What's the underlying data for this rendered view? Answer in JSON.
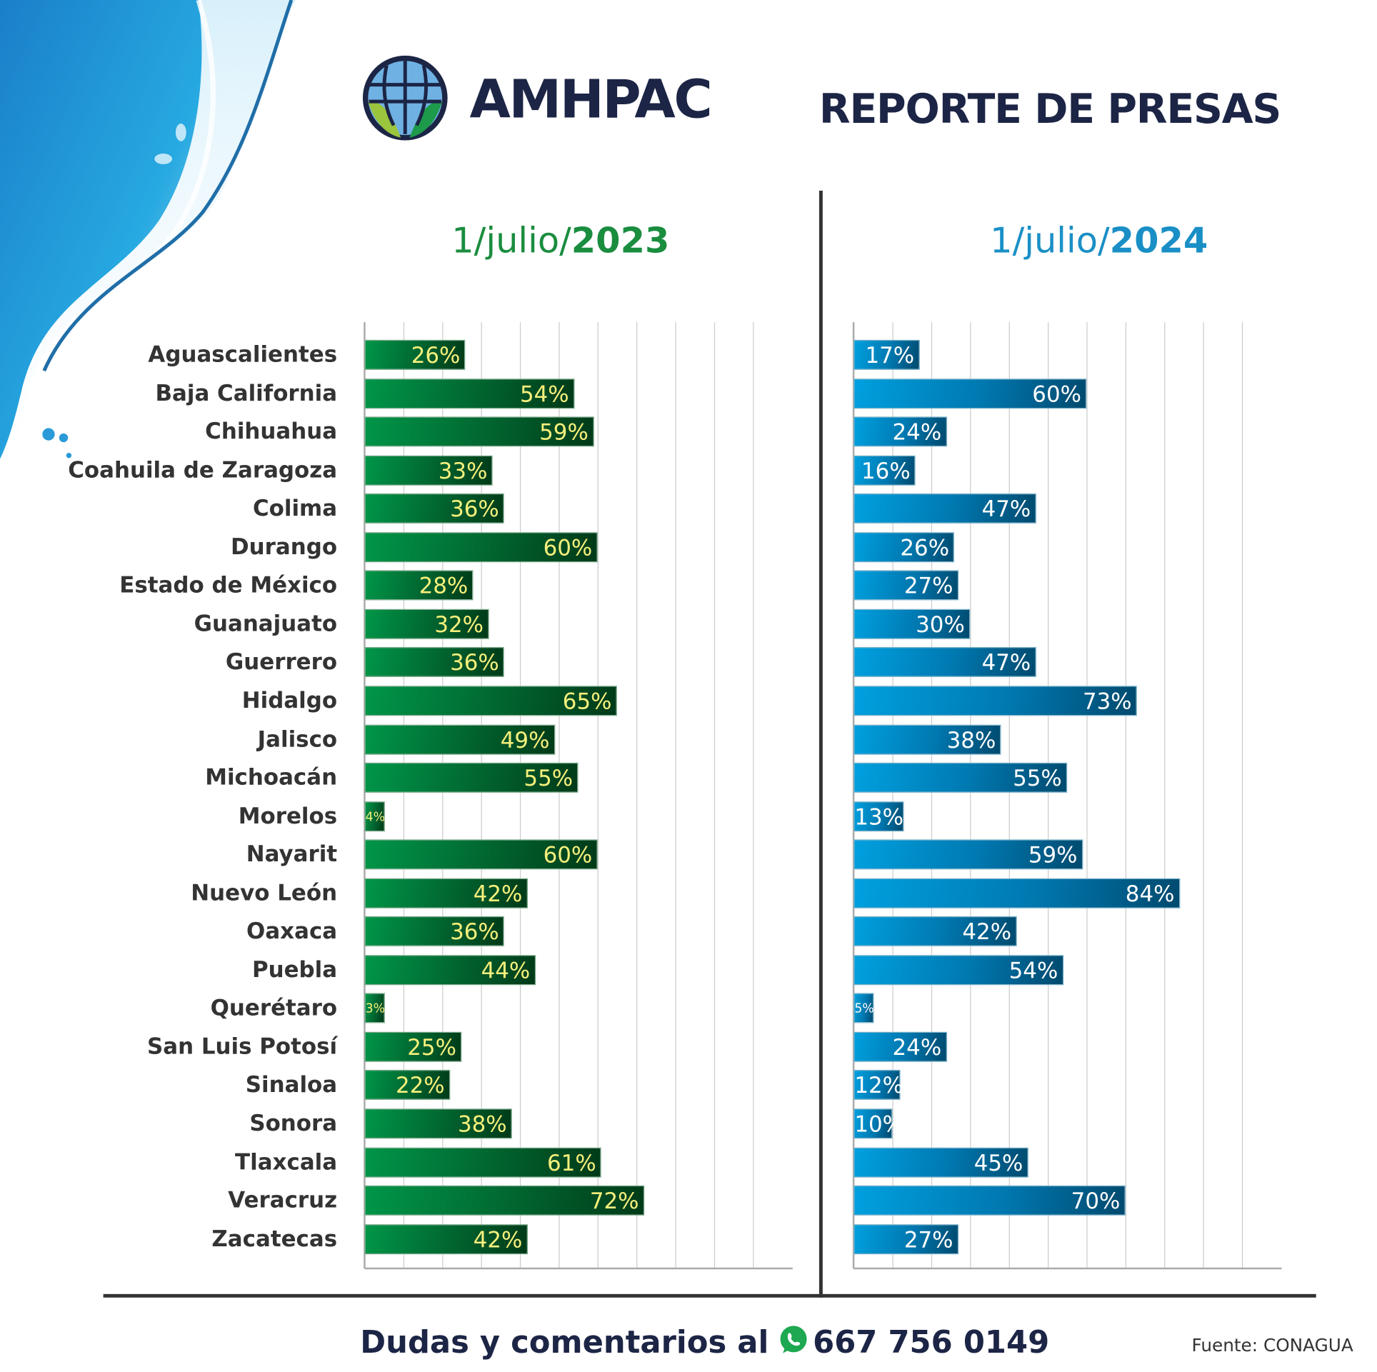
{
  "header": {
    "brand": "AMHPAC",
    "title": "REPORTE DE PRESAS"
  },
  "footer": {
    "contact_text": "Dudas y comentarios al",
    "phone": "667 756 0149",
    "source": "Fuente: CONAGUA"
  },
  "colors": {
    "green_bar": "#01642f",
    "blue_bar": "#0078b0",
    "green_label": "#f6f07c",
    "navy": "#1c2545"
  },
  "icons": {
    "logo": "globe-leaf-logo",
    "contact": "whatsapp-icon"
  },
  "chart_data": [
    {
      "type": "bar",
      "orientation": "horizontal",
      "title_prefix": "1/julio/",
      "title_year": "2023",
      "xlim": [
        0,
        110
      ],
      "grid": true,
      "categories": [
        "Aguascalientes",
        "Baja California",
        "Chihuahua",
        "Coahuila de Zaragoza",
        "Colima",
        "Durango",
        "Estado de México",
        "Guanajuato",
        "Guerrero",
        "Hidalgo",
        "Jalisco",
        "Michoacán",
        "Morelos",
        "Nayarit",
        "Nuevo León",
        "Oaxaca",
        "Puebla",
        "Querétaro",
        "San Luis Potosí",
        "Sinaloa",
        "Sonora",
        "Tlaxcala",
        "Veracruz",
        "Zacatecas"
      ],
      "values": [
        26,
        54,
        59,
        33,
        36,
        60,
        28,
        32,
        36,
        65,
        49,
        55,
        4,
        60,
        42,
        36,
        44,
        3,
        25,
        22,
        38,
        61,
        72,
        42
      ],
      "labels": [
        "26%",
        "54%",
        "59%",
        "33%",
        "36%",
        "60%",
        "28%",
        "32%",
        "36%",
        "65%",
        "49%",
        "55%",
        "4%",
        "60%",
        "42%",
        "36%",
        "44%",
        "3%",
        "25%",
        "22%",
        "38%",
        "61%",
        "72%",
        "42%"
      ]
    },
    {
      "type": "bar",
      "orientation": "horizontal",
      "title_prefix": "1/julio/",
      "title_year": "2024",
      "xlim": [
        0,
        110
      ],
      "grid": true,
      "values": [
        17,
        60,
        24,
        16,
        47,
        26,
        27,
        30,
        47,
        73,
        38,
        55,
        13,
        59,
        84,
        42,
        54,
        5,
        24,
        12,
        10,
        45,
        70,
        27
      ],
      "labels": [
        "17%",
        "60%",
        "24%",
        "16%",
        "47%",
        "26%",
        "27%",
        "30%",
        "47%",
        "73%",
        "38%",
        "55%",
        "13%",
        "59%",
        "84%",
        "42%",
        "54%",
        "5%",
        "24%",
        "12%",
        "10%",
        "45%",
        "70%",
        "27%"
      ]
    }
  ]
}
